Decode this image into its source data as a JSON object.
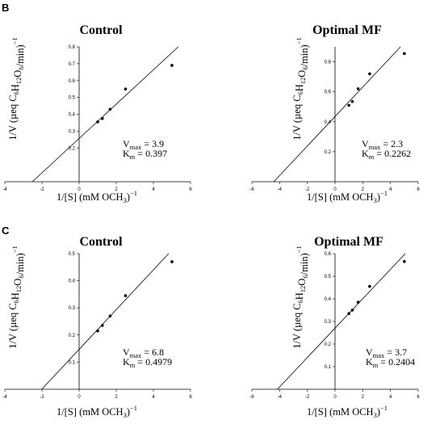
{
  "panel_letters": [
    "B",
    "C"
  ],
  "chart_data": [
    {
      "type": "scatter",
      "panel": "B",
      "title": "Control",
      "xlabel": "1/[S] (mM OCH3)−1",
      "ylabel": "1/V (µeq C6H12O6/min)−1",
      "xlim": [
        -4,
        6
      ],
      "ylim": [
        0,
        0.8
      ],
      "xticks": [
        -4,
        -2,
        0,
        2,
        4,
        6
      ],
      "yticks": [
        0.2,
        0.3,
        0.4,
        0.5,
        0.6,
        0.7,
        0.8
      ],
      "points": [
        {
          "x": 1.0,
          "y": 0.355
        },
        {
          "x": 1.25,
          "y": 0.375
        },
        {
          "x": 1.67,
          "y": 0.43
        },
        {
          "x": 2.5,
          "y": 0.55
        },
        {
          "x": 5.0,
          "y": 0.69
        }
      ],
      "fit": {
        "slope": 0.1018,
        "intercept": 0.2564
      },
      "annotation": {
        "vmax_label": "V",
        "vmax_sub": "max",
        "vmax_value": " = 3.9",
        "km_label": "K",
        "km_sub": "m",
        "km_value": " = 0.397"
      }
    },
    {
      "type": "scatter",
      "panel": "B",
      "title": "Optimal MF",
      "xlabel": "1/[S] (mM OCH3)−1",
      "ylabel": "1/V (µeq C6H12O6/min)−1",
      "xlim": [
        -6,
        6
      ],
      "ylim": [
        0,
        0.9
      ],
      "xticks": [
        -6,
        -4,
        -2,
        0,
        2,
        4,
        6
      ],
      "yticks": [
        0.2,
        0.4,
        0.6,
        0.8
      ],
      "points": [
        {
          "x": 1.0,
          "y": 0.51
        },
        {
          "x": 1.25,
          "y": 0.535
        },
        {
          "x": 1.67,
          "y": 0.62
        },
        {
          "x": 2.5,
          "y": 0.72
        },
        {
          "x": 5.0,
          "y": 0.855
        }
      ],
      "fit": {
        "slope": 0.0984,
        "intercept": 0.4348
      },
      "annotation": {
        "vmax_label": "V",
        "vmax_sub": "max",
        "vmax_value": " = 2.3",
        "km_label": "K",
        "km_sub": "m",
        "km_value": " = 0.2262"
      }
    },
    {
      "type": "scatter",
      "panel": "C",
      "title": "Control",
      "xlabel": "1/[S] (mM OCH3)−1",
      "ylabel": "1/V (µeq C6H12O6/min)−1",
      "xlim": [
        -4,
        6
      ],
      "ylim": [
        0,
        0.5
      ],
      "xticks": [
        -4,
        -2,
        0,
        2,
        4,
        6
      ],
      "yticks": [
        0.1,
        0.2,
        0.3,
        0.4,
        0.5
      ],
      "points": [
        {
          "x": 1.0,
          "y": 0.215
        },
        {
          "x": 1.25,
          "y": 0.235
        },
        {
          "x": 1.67,
          "y": 0.27
        },
        {
          "x": 2.5,
          "y": 0.345
        },
        {
          "x": 5.0,
          "y": 0.47
        }
      ],
      "fit": {
        "slope": 0.0732,
        "intercept": 0.1471
      },
      "annotation": {
        "vmax_label": "V",
        "vmax_sub": "max",
        "vmax_value": " = 6.8",
        "km_label": "K",
        "km_sub": "m",
        "km_value": " = 0.4979"
      }
    },
    {
      "type": "scatter",
      "panel": "C",
      "title": "Optimal MF",
      "xlabel": "1/[S] (mM OCH3)−1",
      "ylabel": "1/V (µeq C6H12O6/min)−1",
      "xlim": [
        -6,
        6
      ],
      "ylim": [
        0,
        0.6
      ],
      "xticks": [
        -6,
        -4,
        -2,
        0,
        2,
        4,
        6
      ],
      "yticks": [
        0.1,
        0.2,
        0.3,
        0.4,
        0.5,
        0.6
      ],
      "points": [
        {
          "x": 1.0,
          "y": 0.335
        },
        {
          "x": 1.25,
          "y": 0.35
        },
        {
          "x": 1.67,
          "y": 0.385
        },
        {
          "x": 2.5,
          "y": 0.455
        },
        {
          "x": 5.0,
          "y": 0.565
        }
      ],
      "fit": {
        "slope": 0.065,
        "intercept": 0.2703
      },
      "annotation": {
        "vmax_label": "V",
        "vmax_sub": "max",
        "vmax_value": " = 3.7",
        "km_label": "K",
        "km_sub": "m",
        "km_value": " = 0.2404"
      }
    }
  ]
}
